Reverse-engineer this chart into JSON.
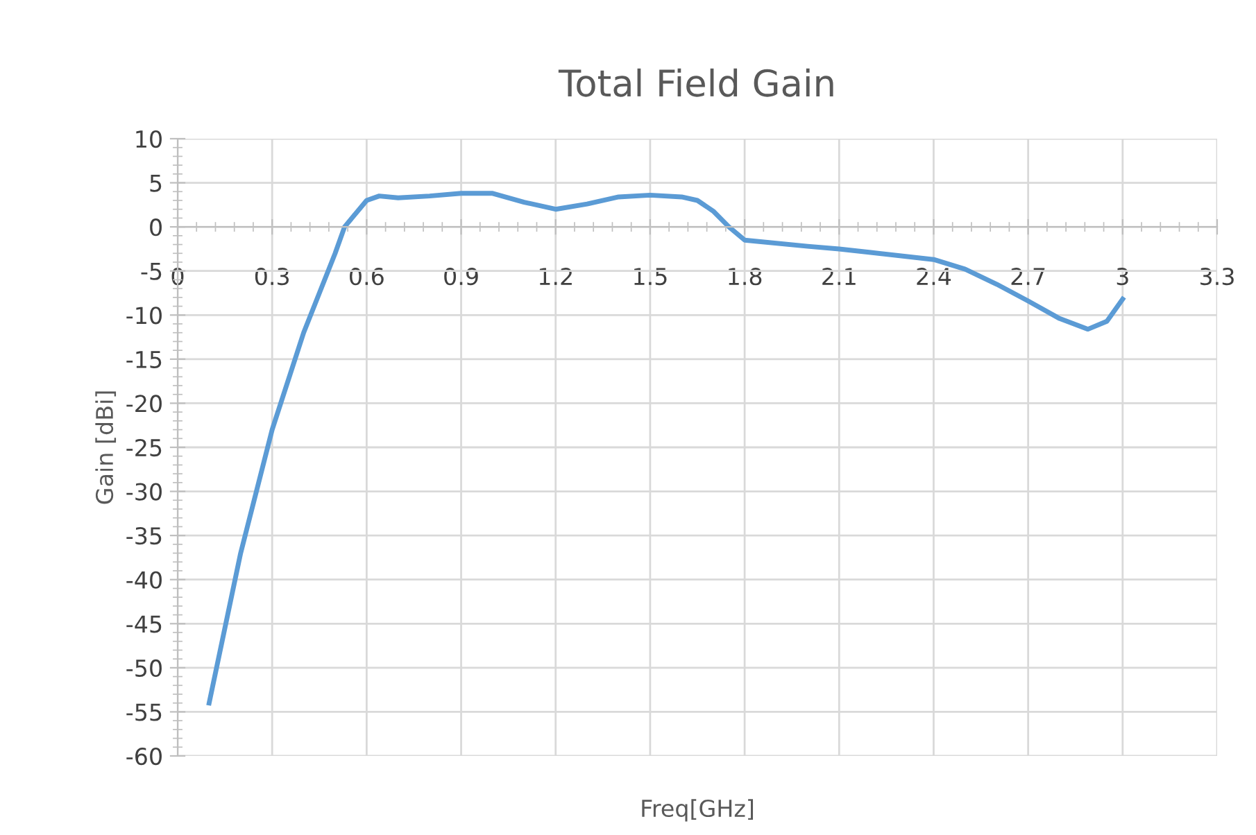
{
  "chart_data": {
    "type": "line",
    "title": "Total Field Gain",
    "xlabel": "Freq[GHz]",
    "ylabel": "Gain [dBi]",
    "x": [
      0.1,
      0.2,
      0.3,
      0.4,
      0.5,
      0.53,
      0.6,
      0.64,
      0.7,
      0.8,
      0.9,
      1.0,
      1.1,
      1.2,
      1.3,
      1.4,
      1.5,
      1.6,
      1.65,
      1.7,
      1.75,
      1.8,
      2.0,
      2.1,
      2.2,
      2.4,
      2.5,
      2.6,
      2.7,
      2.8,
      2.89,
      2.95,
      3.0
    ],
    "series": [
      {
        "color": "#5b9bd5",
        "values": [
          -54,
          -37,
          -23,
          -12,
          -3,
          0,
          3,
          3.5,
          3.3,
          3.5,
          3.8,
          3.8,
          2.8,
          2,
          2.6,
          3.4,
          3.6,
          3.4,
          3,
          1.8,
          0,
          -1.5,
          -2.2,
          -2.5,
          -2.9,
          -3.7,
          -4.8,
          -6.5,
          -8.4,
          -10.4,
          -11.6,
          -10.7,
          -8.2
        ]
      }
    ],
    "xlim": [
      0,
      3.3
    ],
    "xticks": [
      0,
      0.3,
      0.6,
      0.9,
      1.2,
      1.5,
      1.8,
      2.1,
      2.4,
      2.7,
      3,
      3.3
    ],
    "ylim": [
      -60,
      10
    ],
    "yticks": [
      -60,
      -55,
      -50,
      -45,
      -40,
      -35,
      -30,
      -25,
      -20,
      -15,
      -10,
      -5,
      0,
      5,
      10
    ],
    "grid": true,
    "legend": false,
    "marker": "none",
    "line_style": "solid"
  }
}
